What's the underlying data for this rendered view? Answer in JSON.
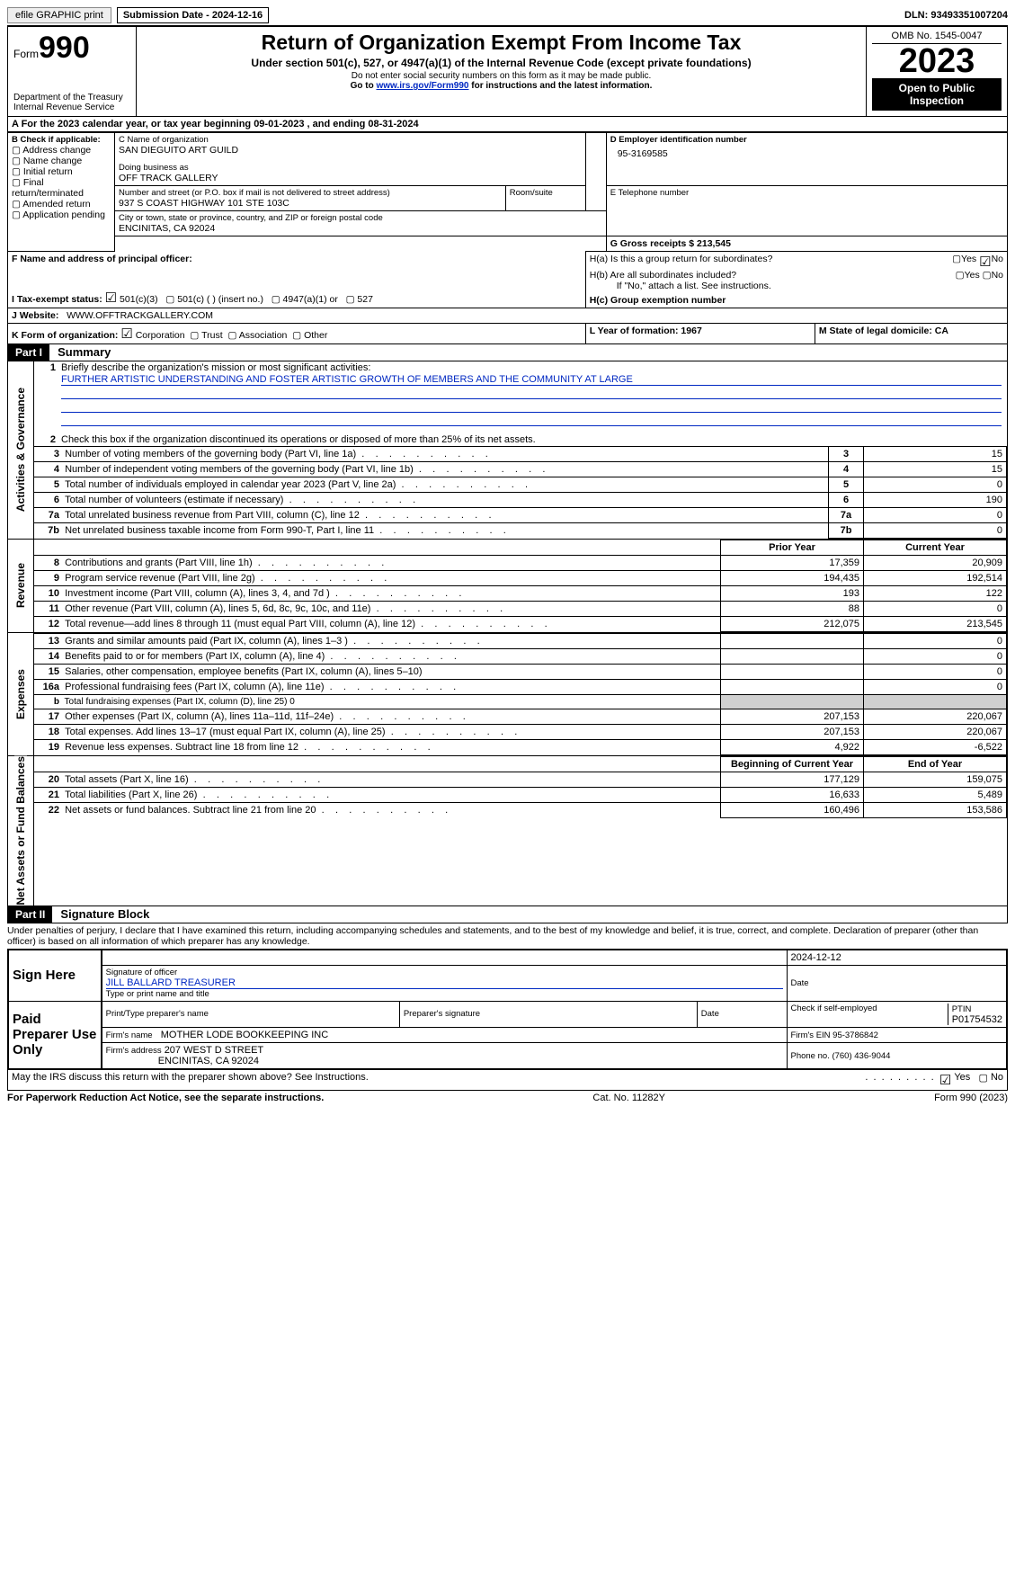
{
  "topbar": {
    "efile": "efile GRAPHIC print",
    "submission": "Submission Date - 2024-12-16",
    "dln": "DLN: 93493351007204"
  },
  "header": {
    "form_label": "Form",
    "form_num": "990",
    "dept": "Department of the Treasury Internal Revenue Service",
    "title": "Return of Organization Exempt From Income Tax",
    "subtitle": "Under section 501(c), 527, or 4947(a)(1) of the Internal Revenue Code (except private foundations)",
    "nossn": "Do not enter social security numbers on this form as it may be made public.",
    "goto_pre": "Go to ",
    "goto_link": "www.irs.gov/Form990",
    "goto_post": " for instructions and the latest information.",
    "omb": "OMB No. 1545-0047",
    "year": "2023",
    "open": "Open to Public Inspection"
  },
  "a": {
    "line": "A For the 2023 calendar year, or tax year beginning 09-01-2023    , and ending 08-31-2024"
  },
  "b": {
    "label": "B Check if applicable:",
    "items": [
      "Address change",
      "Name change",
      "Initial return",
      "Final return/terminated",
      "Amended return",
      "Application pending"
    ]
  },
  "c": {
    "name_lbl": "C Name of organization",
    "name": "SAN DIEGUITO ART GUILD",
    "dba_lbl": "Doing business as",
    "dba": "OFF TRACK GALLERY",
    "street_lbl": "Number and street (or P.O. box if mail is not delivered to street address)",
    "street": "937 S COAST HIGHWAY 101 STE 103C",
    "room_lbl": "Room/suite",
    "city_lbl": "City or town, state or province, country, and ZIP or foreign postal code",
    "city": "ENCINITAS, CA  92024"
  },
  "d": {
    "lbl": "D Employer identification number",
    "val": "95-3169585"
  },
  "e": {
    "lbl": "E Telephone number"
  },
  "g": {
    "lbl": "G Gross receipts $ 213,545"
  },
  "f": {
    "lbl": "F  Name and address of principal officer:"
  },
  "h": {
    "a": "H(a)  Is this a group return for subordinates?",
    "b": "H(b)  Are all subordinates included?",
    "b_note": "If \"No,\" attach a list. See instructions.",
    "c": "H(c)  Group exemption number"
  },
  "i": {
    "lbl": "I   Tax-exempt status:",
    "opts": [
      "501(c)(3)",
      "501(c) (  ) (insert no.)",
      "4947(a)(1) or",
      "527"
    ]
  },
  "j": {
    "lbl": "J   Website:",
    "val": "WWW.OFFTRACKGALLERY.COM"
  },
  "k": {
    "lbl": "K Form of organization:",
    "opts": [
      "Corporation",
      "Trust",
      "Association",
      "Other"
    ]
  },
  "l": {
    "lbl": "L Year of formation: 1967"
  },
  "m": {
    "lbl": "M State of legal domicile: CA"
  },
  "part1": {
    "bar": "Part I",
    "title": "Summary"
  },
  "summary": {
    "l1_lbl": "Briefly describe the organization's mission or most significant activities:",
    "l1_val": "FURTHER ARTISTIC UNDERSTANDING AND FOSTER ARTISTIC GROWTH OF MEMBERS AND THE COMMUNITY AT LARGE",
    "l2": "Check this box      if the organization discontinued its operations or disposed of more than 25% of its net assets.",
    "rows_gov": [
      {
        "n": "3",
        "t": "Number of voting members of the governing body (Part VI, line 1a)",
        "v": "15"
      },
      {
        "n": "4",
        "t": "Number of independent voting members of the governing body (Part VI, line 1b)",
        "v": "15"
      },
      {
        "n": "5",
        "t": "Total number of individuals employed in calendar year 2023 (Part V, line 2a)",
        "v": "0"
      },
      {
        "n": "6",
        "t": "Total number of volunteers (estimate if necessary)",
        "v": "190"
      },
      {
        "n": "7a",
        "t": "Total unrelated business revenue from Part VIII, column (C), line 12",
        "v": "0"
      },
      {
        "n": "7b",
        "t": "Net unrelated business taxable income from Form 990-T, Part I, line 11",
        "v": "0"
      }
    ],
    "col_prior": "Prior Year",
    "col_current": "Current Year",
    "rows_rev": [
      {
        "n": "8",
        "t": "Contributions and grants (Part VIII, line 1h)",
        "p": "17,359",
        "c": "20,909"
      },
      {
        "n": "9",
        "t": "Program service revenue (Part VIII, line 2g)",
        "p": "194,435",
        "c": "192,514"
      },
      {
        "n": "10",
        "t": "Investment income (Part VIII, column (A), lines 3, 4, and 7d )",
        "p": "193",
        "c": "122"
      },
      {
        "n": "11",
        "t": "Other revenue (Part VIII, column (A), lines 5, 6d, 8c, 9c, 10c, and 11e)",
        "p": "88",
        "c": "0"
      },
      {
        "n": "12",
        "t": "Total revenue—add lines 8 through 11 (must equal Part VIII, column (A), line 12)",
        "p": "212,075",
        "c": "213,545"
      }
    ],
    "rows_exp": [
      {
        "n": "13",
        "t": "Grants and similar amounts paid (Part IX, column (A), lines 1–3 )",
        "p": "",
        "c": "0"
      },
      {
        "n": "14",
        "t": "Benefits paid to or for members (Part IX, column (A), line 4)",
        "p": "",
        "c": "0"
      },
      {
        "n": "15",
        "t": "Salaries, other compensation, employee benefits (Part IX, column (A), lines 5–10)",
        "p": "",
        "c": "0"
      },
      {
        "n": "16a",
        "t": "Professional fundraising fees (Part IX, column (A), line 11e)",
        "p": "",
        "c": "0"
      },
      {
        "n": "b",
        "t": "Total fundraising expenses (Part IX, column (D), line 25) 0",
        "p": "shade",
        "c": "shade"
      },
      {
        "n": "17",
        "t": "Other expenses (Part IX, column (A), lines 11a–11d, 11f–24e)",
        "p": "207,153",
        "c": "220,067"
      },
      {
        "n": "18",
        "t": "Total expenses. Add lines 13–17 (must equal Part IX, column (A), line 25)",
        "p": "207,153",
        "c": "220,067"
      },
      {
        "n": "19",
        "t": "Revenue less expenses. Subtract line 18 from line 12",
        "p": "4,922",
        "c": "-6,522"
      }
    ],
    "col_begin": "Beginning of Current Year",
    "col_end": "End of Year",
    "rows_net": [
      {
        "n": "20",
        "t": "Total assets (Part X, line 16)",
        "p": "177,129",
        "c": "159,075"
      },
      {
        "n": "21",
        "t": "Total liabilities (Part X, line 26)",
        "p": "16,633",
        "c": "5,489"
      },
      {
        "n": "22",
        "t": "Net assets or fund balances. Subtract line 21 from line 20",
        "p": "160,496",
        "c": "153,586"
      }
    ]
  },
  "part2": {
    "bar": "Part II",
    "title": "Signature Block"
  },
  "sig": {
    "decl": "Under penalties of perjury, I declare that I have examined this return, including accompanying schedules and statements, and to the best of my knowledge and belief, it is true, correct, and complete. Declaration of preparer (other than officer) is based on all information of which preparer has any knowledge.",
    "sign_here": "Sign Here",
    "date1": "2024-12-12",
    "sig_officer_lbl": "Signature of officer",
    "officer": "JILL BALLARD  TREASURER",
    "type_name_lbl": "Type or print name and title",
    "date_lbl": "Date",
    "paid": "Paid Preparer Use Only",
    "prep_name_lbl": "Print/Type preparer's name",
    "prep_sig_lbl": "Preparer's signature",
    "check_se": "Check       if self-employed",
    "ptin_lbl": "PTIN",
    "ptin": "P01754532",
    "firm_name_lbl": "Firm's name",
    "firm_name": "MOTHER LODE BOOKKEEPING INC",
    "firm_ein": "Firm's EIN  95-3786842",
    "firm_addr_lbl": "Firm's address",
    "firm_addr1": "207 WEST D STREET",
    "firm_addr2": "ENCINITAS, CA  92024",
    "phone": "Phone no. (760) 436-9044",
    "discuss": "May the IRS discuss this return with the preparer shown above? See Instructions."
  },
  "footer": {
    "left": "For Paperwork Reduction Act Notice, see the separate instructions.",
    "mid": "Cat. No. 11282Y",
    "right": "Form 990 (2023)"
  },
  "glyph": {
    "box": "▢",
    "checked": "☑",
    "yes": "Yes",
    "no": "No"
  }
}
